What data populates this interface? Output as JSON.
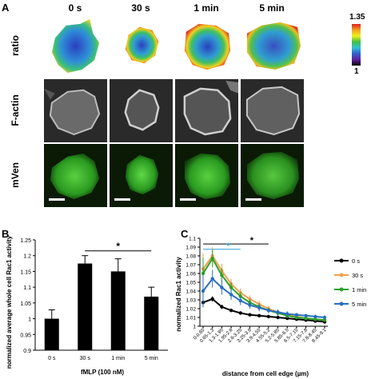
{
  "panel_a": {
    "letter": "A",
    "columns": [
      "0 s",
      "30 s",
      "1 min",
      "5 min"
    ],
    "rows": [
      "ratio",
      "F-actin",
      "mVen"
    ],
    "colorbar": {
      "max": "1.35",
      "min": "1"
    }
  },
  "chart_data": [
    {
      "panel": "B",
      "type": "bar",
      "categories": [
        "0 s",
        "30 s",
        "1 min",
        "5 min"
      ],
      "values": [
        1.0,
        1.175,
        1.15,
        1.07
      ],
      "errors": [
        0.028,
        0.025,
        0.04,
        0.03
      ],
      "xlabel": "fMLP (100 nM)",
      "ylabel": "normalized average whole cell Rac1 activity",
      "ylim": [
        0.9,
        1.25
      ],
      "yticks": [
        "0.9",
        "0.95",
        "1",
        "1.05",
        "1.1",
        "1.15",
        "1.2",
        "1.25"
      ],
      "significance": "*",
      "bar_color": "#000000"
    },
    {
      "panel": "C",
      "type": "line",
      "x": [
        "0-0.65",
        "0.65-1.3",
        "1.3-1.95",
        "1.95-2.6",
        "2.6-3.25",
        "3.25-3.9",
        "3.9-4.55",
        "4.55-5.2",
        "5.2-5.85",
        "5.85-6.5",
        "6.5-7.15",
        "7.15-7.8",
        "7.8-8.45",
        "8.45-9.1"
      ],
      "series": [
        {
          "name": "0 s",
          "color": "#000000",
          "values": [
            1.027,
            1.031,
            1.022,
            1.018,
            1.015,
            1.013,
            1.012,
            1.011,
            1.01,
            1.009,
            1.008,
            1.007,
            1.006,
            1.005
          ]
        },
        {
          "name": "30 s",
          "color": "#f0a050",
          "values": [
            1.065,
            1.08,
            1.063,
            1.048,
            1.038,
            1.031,
            1.025,
            1.02,
            1.016,
            1.013,
            1.011,
            1.009,
            1.008,
            1.007
          ]
        },
        {
          "name": "1 min",
          "color": "#2ca02c",
          "values": [
            1.06,
            1.077,
            1.058,
            1.044,
            1.034,
            1.027,
            1.022,
            1.018,
            1.015,
            1.012,
            1.01,
            1.009,
            1.008,
            1.007
          ]
        },
        {
          "name": "5 min",
          "color": "#2a6fbf",
          "values": [
            1.04,
            1.054,
            1.044,
            1.036,
            1.029,
            1.024,
            1.021,
            1.018,
            1.016,
            1.014,
            1.013,
            1.012,
            1.011,
            1.01
          ]
        }
      ],
      "errors": [
        0.018,
        0.01,
        0.008,
        0.006,
        0.005,
        0.004,
        0.004,
        0.003,
        0.003,
        0.003,
        0.002,
        0.002,
        0.002,
        0.002
      ],
      "xlabel": "distance from cell edge (µm)",
      "ylabel": "normalized Rac1 activity",
      "ylim": [
        1.0,
        1.1
      ],
      "yticks": [
        "1",
        "1.01",
        "1.02",
        "1.03",
        "1.04",
        "1.05",
        "1.06",
        "1.07",
        "1.08",
        "1.09",
        "1.1"
      ],
      "significance": [
        "*",
        "*"
      ],
      "significance_colors": [
        "#000000",
        "#2a9fd6"
      ]
    }
  ]
}
